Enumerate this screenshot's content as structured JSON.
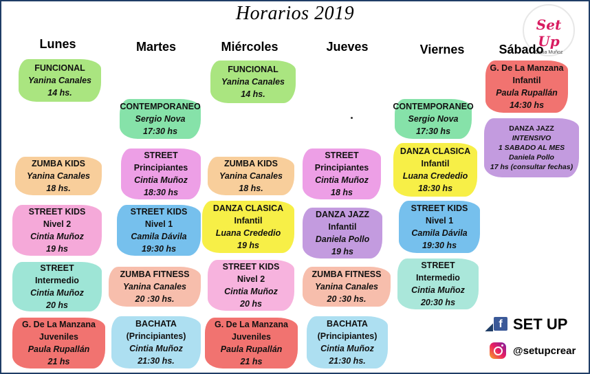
{
  "title": "Horarios 2019",
  "logo": {
    "brand": "Set Up",
    "subtitle": "Cintia Muñoz"
  },
  "days": [
    "Lunes",
    "Martes",
    "Miércoles",
    "Jueves",
    "Viernes",
    "Sábado"
  ],
  "classes": {
    "lun_1": {
      "lines": [
        "FUNCIONAL",
        "Yanina Canales",
        "14 hs."
      ],
      "color": "#9be06a"
    },
    "lun_2": {
      "lines": [
        "ZUMBA KIDS",
        "Yanina Canales",
        "18 hs."
      ],
      "color": "#f7c58a"
    },
    "lun_3": {
      "lines": [
        "STREET KIDS",
        "Nivel 2",
        "Cintia Muñoz",
        "19 hs"
      ],
      "color": "#f39ad2"
    },
    "lun_4": {
      "lines": [
        "STREET",
        "Intermedio",
        "Cintia Muñoz",
        "20 hs"
      ],
      "color": "#8de0cf"
    },
    "lun_5": {
      "lines": [
        "G. De La Manzana",
        "Juveniles",
        "Paula Rupallán",
        "21 hs"
      ],
      "color": "#ee5a57"
    },
    "mar_1": {
      "lines": [
        "CONTEMPORANEO",
        "Sergio Nova",
        "17:30  hs"
      ],
      "color": "#71dd9a"
    },
    "mar_2": {
      "lines": [
        "STREET",
        "Principiantes",
        "Cintia Muñoz",
        "18:30  hs"
      ],
      "color": "#ea8ee2"
    },
    "mar_3": {
      "lines": [
        "STREET KIDS",
        "Nivel 1",
        "Camila Dávila",
        "19:30  hs"
      ],
      "color": "#5eb5ea"
    },
    "mar_4": {
      "lines": [
        "ZUMBA FITNESS",
        "Yanina Canales",
        "20 :30 hs."
      ],
      "color": "#f6b39d"
    },
    "mar_5": {
      "lines": [
        "BACHATA",
        "(Principiantes)",
        "Cintia Muñoz",
        "21:30  hs."
      ],
      "color": "#9fd9ee"
    },
    "mie_1": {
      "lines": [
        "FUNCIONAL",
        "Yanina Canales",
        "14 hs."
      ],
      "color": "#9be06a"
    },
    "mie_2": {
      "lines": [
        "ZUMBA KIDS",
        "Yanina Canales",
        "18 hs."
      ],
      "color": "#f7c58a"
    },
    "mie_3": {
      "lines": [
        "DANZA CLASICA",
        "Infantil",
        "Luana Crededio",
        "19 hs"
      ],
      "color": "#f6ec27"
    },
    "mie_4": {
      "lines": [
        "STREET KIDS",
        "Nivel 2",
        "Cintia Muñoz",
        "20 hs"
      ],
      "color": "#f6a6d8"
    },
    "mie_5": {
      "lines": [
        "G. De La Manzana",
        "Juveniles",
        "Paula Rupallán",
        "21 hs"
      ],
      "color": "#ee5a57"
    },
    "jue_1": {
      "lines": [
        "STREET",
        "Principiantes",
        "Cintia Muñoz",
        "18 hs"
      ],
      "color": "#ea8ee2"
    },
    "jue_2": {
      "lines": [
        "DANZA JAZZ",
        "Infantil",
        "Daniela Pollo",
        "19 hs"
      ],
      "color": "#b98ad9"
    },
    "jue_3": {
      "lines": [
        "ZUMBA FITNESS",
        "Yanina Canales",
        "20 :30 hs."
      ],
      "color": "#f6b39d"
    },
    "jue_4": {
      "lines": [
        "BACHATA",
        "(Principiantes)",
        "Cintia Muñoz",
        "21:30  hs."
      ],
      "color": "#9fd9ee"
    },
    "vie_1": {
      "lines": [
        "CONTEMPORANEO",
        "Sergio Nova",
        "17:30  hs"
      ],
      "color": "#71dd9a"
    },
    "vie_2": {
      "lines": [
        "DANZA CLASICA",
        "Infantil",
        "Luana Crededio",
        "18:30  hs"
      ],
      "color": "#f6ec27"
    },
    "vie_3": {
      "lines": [
        "STREET KIDS",
        "Nivel 1",
        "Camila Dávila",
        "19:30  hs"
      ],
      "color": "#5eb5ea"
    },
    "vie_4": {
      "lines": [
        "STREET",
        "Intermedio",
        "Cintia Muñoz",
        "20:30  hs"
      ],
      "color": "#9be3d3"
    },
    "sab_1": {
      "lines": [
        "G. De La Manzana",
        "Infantil",
        "Paula Rupallán",
        "14:30  hs"
      ],
      "color": "#ee5a57"
    },
    "sab_2": {
      "lines": [
        "DANZA JAZZ",
        "INTENSIVO",
        "1 SABADO AL MES",
        "Daniela Pollo",
        "17 hs (consultar fechas)"
      ],
      "color": "#b98ad9"
    }
  },
  "social": {
    "facebook_icon": "facebook-icon",
    "facebook_label": "SET UP",
    "instagram_icon": "instagram-icon",
    "instagram_label": "@setupcrear"
  }
}
